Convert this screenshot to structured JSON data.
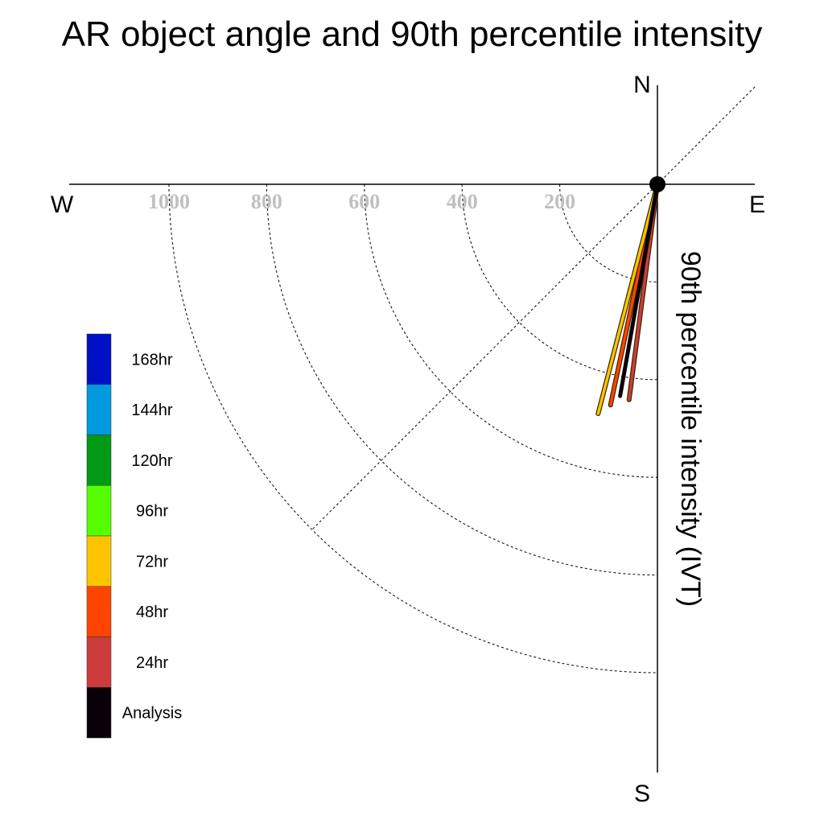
{
  "chart_data": {
    "type": "polar-vector",
    "title": "AR object angle and 90th percentile intensity",
    "radial_axis_label": "90th percentile intensity (IVT)",
    "compass": {
      "north": "N",
      "south": "S",
      "east": "E",
      "west": "W"
    },
    "radial_ticks": [
      "200",
      "400",
      "600",
      "800",
      "1000"
    ],
    "radial_tick_values": [
      200,
      400,
      600,
      800,
      1000
    ],
    "radial_max": 1000,
    "legend": [
      {
        "label": "168hr",
        "color": "#0010c4"
      },
      {
        "label": "144hr",
        "color": "#0099dd"
      },
      {
        "label": "120hr",
        "color": "#009a15"
      },
      {
        "label": "96hr",
        "color": "#55ff00"
      },
      {
        "label": "72hr",
        "color": "#ffc400"
      },
      {
        "label": "48hr",
        "color": "#ff4400"
      },
      {
        "label": "24hr",
        "color": "#cc3c3c"
      },
      {
        "label": "Analysis",
        "color": "#0a0008"
      }
    ],
    "series": [
      {
        "name": "24hr",
        "angle_deg": 187.5,
        "value": 445,
        "color": "#cc3c3c"
      },
      {
        "name": "48hr",
        "angle_deg": 192.0,
        "value": 462,
        "color": "#ff4400"
      },
      {
        "name": "72hr",
        "angle_deg": 194.5,
        "value": 485,
        "color": "#ffc400"
      },
      {
        "name": "Analysis",
        "angle_deg": 190.0,
        "value": 440,
        "color": "#0a0008"
      }
    ]
  }
}
